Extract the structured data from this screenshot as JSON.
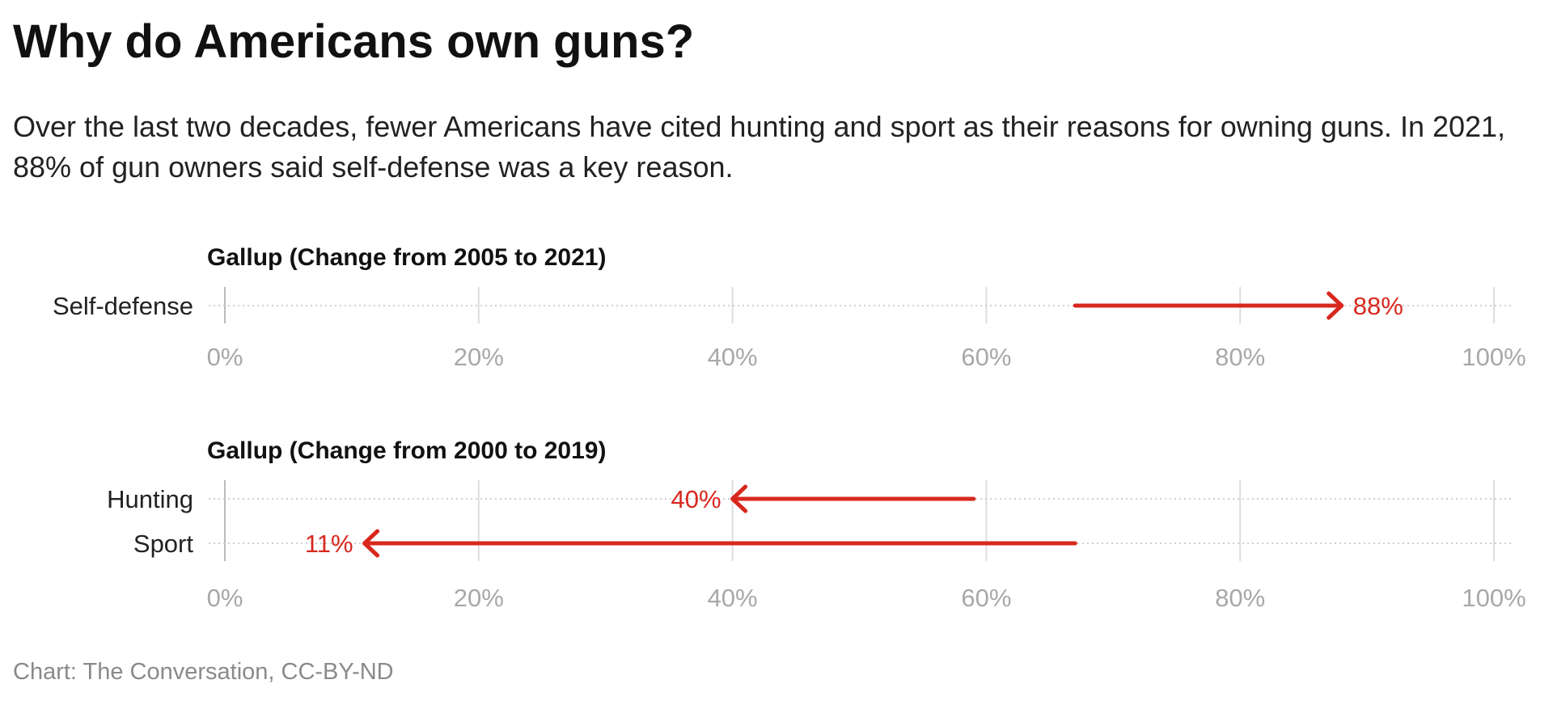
{
  "title": "Why do Americans own guns?",
  "subtitle": "Over the last two decades, fewer Americans have cited hunting and sport as their reasons for owning guns. In 2021, 88% of gun owners said self-defense was a key reason.",
  "footer": "Chart: The Conversation, CC-BY-ND",
  "colors": {
    "arrow": "#d8281e",
    "grid": "#dddddd",
    "tick": "#a8a8a8"
  },
  "chart_data": [
    {
      "type": "arrow",
      "title": "Gallup (Change from 2005 to 2021)",
      "xlim": [
        0,
        100
      ],
      "ticks": [
        "0%",
        "20%",
        "40%",
        "60%",
        "80%",
        "100%"
      ],
      "rows": [
        {
          "label": "Self-defense",
          "from": 67,
          "to": 88,
          "value_label": "88%"
        }
      ]
    },
    {
      "type": "arrow",
      "title": "Gallup (Change from 2000 to 2019)",
      "xlim": [
        0,
        100
      ],
      "ticks": [
        "0%",
        "20%",
        "40%",
        "60%",
        "80%",
        "100%"
      ],
      "rows": [
        {
          "label": "Hunting",
          "from": 59,
          "to": 40,
          "value_label": "40%"
        },
        {
          "label": "Sport",
          "from": 67,
          "to": 11,
          "value_label": "11%"
        }
      ]
    }
  ]
}
